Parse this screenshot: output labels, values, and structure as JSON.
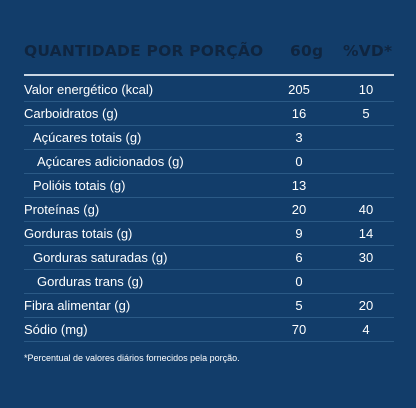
{
  "header": {
    "title": "QUANTIDADE POR PORÇÃO",
    "portion": "60g",
    "vd": "%VD*"
  },
  "rows": [
    {
      "label": "Valor energético (kcal)",
      "value": "205",
      "vd": "10"
    },
    {
      "label": "Carboidratos (g)",
      "value": "16",
      "vd": "5"
    },
    {
      "label": "Açúcares totais (g)",
      "value": "3",
      "vd": ""
    },
    {
      "label": "Açúcares adicionados (g)",
      "value": "0",
      "vd": ""
    },
    {
      "label": "Polióis totais (g)",
      "value": "13",
      "vd": ""
    },
    {
      "label": "Proteínas (g)",
      "value": "20",
      "vd": "40"
    },
    {
      "label": "Gorduras totais (g)",
      "value": "9",
      "vd": "14"
    },
    {
      "label": "Gorduras saturadas (g)",
      "value": "6",
      "vd": "30"
    },
    {
      "label": "Gorduras trans (g)",
      "value": "0",
      "vd": ""
    },
    {
      "label": "Fibra alimentar (g)",
      "value": "5",
      "vd": "20"
    },
    {
      "label": "Sódio (mg)",
      "value": "70",
      "vd": "4"
    }
  ],
  "footnote": "*Percentual de valores diários fornecidos pela porção.",
  "colors": {
    "background": "#123d6a",
    "header_text": "#0f2540",
    "text": "#ffffff",
    "divider": "#2b5a86"
  }
}
